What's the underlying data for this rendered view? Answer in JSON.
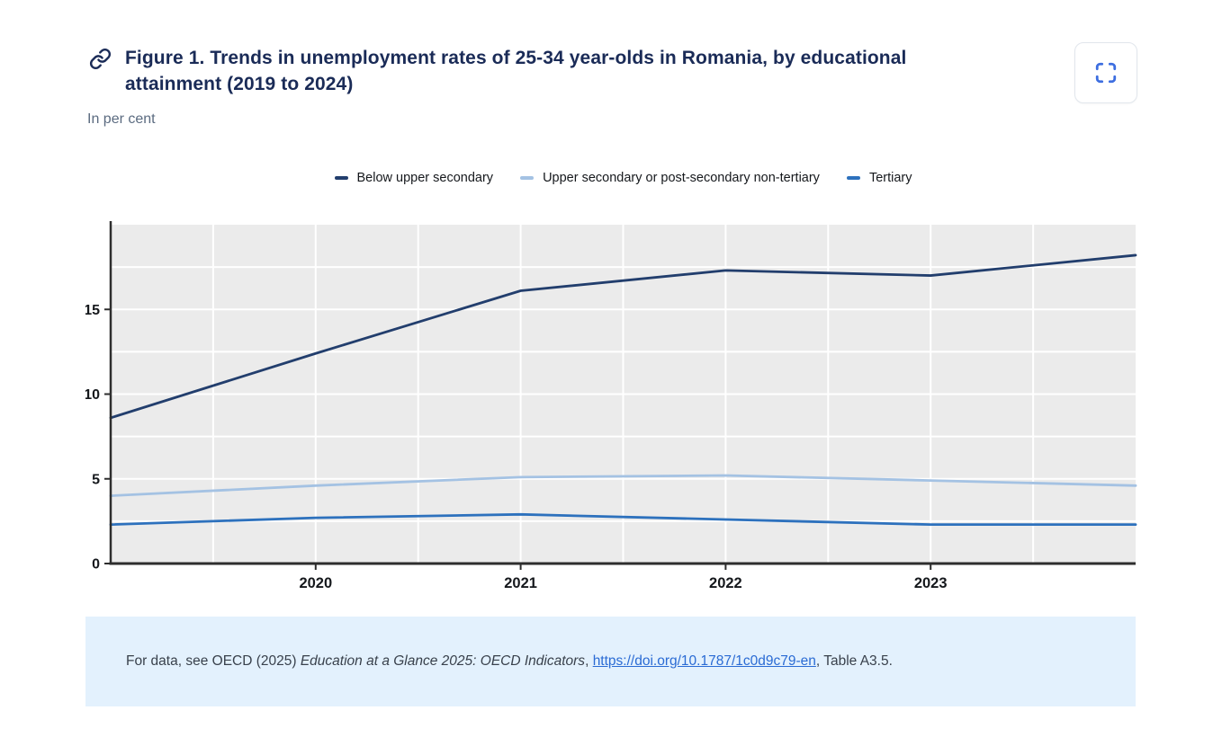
{
  "header": {
    "title": "Figure 1. Trends in unemployment rates of 25-34 year-olds in Romania, by educational attainment (2019 to 2024)",
    "subtitle": "In per cent",
    "icons": {
      "title_link": "link-icon",
      "fullscreen": "fullscreen-icon"
    },
    "accent_colors": {
      "title_navy": "#1a2b57",
      "fullscreen_icon_blue": "#3d6ee0"
    }
  },
  "chart_data": {
    "type": "line",
    "title": "Figure 1. Trends in unemployment rates of 25-34 year-olds in Romania, by educational attainment (2019 to 2024)",
    "subtitle": "In per cent",
    "x": [
      2019,
      2020,
      2021,
      2022,
      2023,
      2024
    ],
    "x_ticks": [
      2020,
      2021,
      2022,
      2023
    ],
    "x_tick_labels": [
      "2020",
      "2021",
      "2022",
      "2023"
    ],
    "y_ticks": [
      0,
      5,
      10,
      15
    ],
    "ylim": [
      0,
      20
    ],
    "xlabel": "",
    "ylabel": "",
    "legend_position": "top-center",
    "plot_bg": "#ebebeb",
    "grid": {
      "color": "#ffffff",
      "h_step": 2.5,
      "v_step": 0.5
    },
    "axis_color": "#2e2e2e",
    "series": [
      {
        "name": "Below upper secondary",
        "color": "#223e6d",
        "values": [
          8.6,
          12.4,
          16.1,
          17.3,
          17.0,
          18.2
        ]
      },
      {
        "name": "Upper secondary or post-secondary non-tertiary",
        "color": "#a4c2e3",
        "values": [
          4.0,
          4.6,
          5.1,
          5.2,
          4.9,
          4.6
        ]
      },
      {
        "name": "Tertiary",
        "color": "#2d71bd",
        "values": [
          2.3,
          2.7,
          2.9,
          2.6,
          2.3,
          2.3
        ]
      }
    ]
  },
  "footer": {
    "text_prefix": "For data, see OECD (2025) ",
    "text_italic": "Education at a Glance 2025: OECD Indicators",
    "text_mid": ", ",
    "link_text": "https://doi.org/10.1787/1c0d9c79-en",
    "text_suffix": ", Table A3.5.",
    "bg_color": "#e3f1fd",
    "link_color": "#2a6bd4"
  }
}
